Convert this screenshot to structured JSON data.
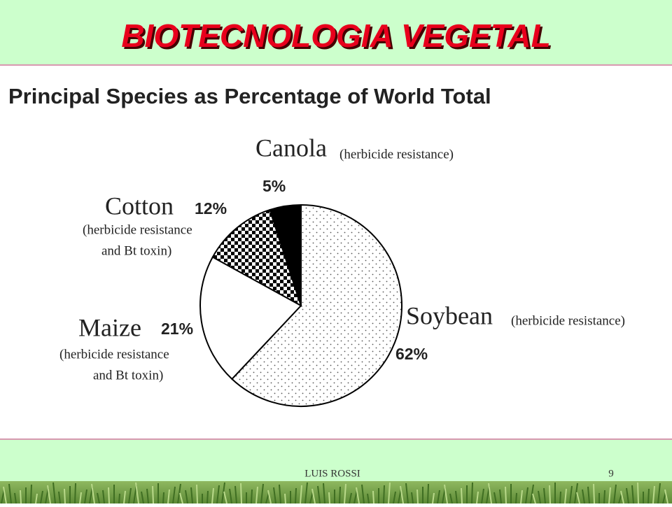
{
  "slide": {
    "title": "BIOTECNOLOGIA VEGETAL",
    "footer": "LUIS ROSSI",
    "page": "9"
  },
  "chart_data": {
    "type": "pie",
    "title": "Principal Species as Percentage of World Total",
    "categories": [
      "Soybean",
      "Maize",
      "Cotton",
      "Canola"
    ],
    "descriptions": [
      [
        "(herbicide resistance)"
      ],
      [
        "(herbicide resistance",
        "and Bt toxin)"
      ],
      [
        "(herbicide resistance",
        "and Bt toxin)"
      ],
      [
        "(herbicide resistance)"
      ]
    ],
    "values": [
      62,
      21,
      12,
      5
    ],
    "value_labels": [
      "62%",
      "21%",
      "12%",
      "5%"
    ],
    "patterns": [
      "dots",
      "plain",
      "checker",
      "solid"
    ],
    "start_angle": 0,
    "direction": "clockwise"
  }
}
